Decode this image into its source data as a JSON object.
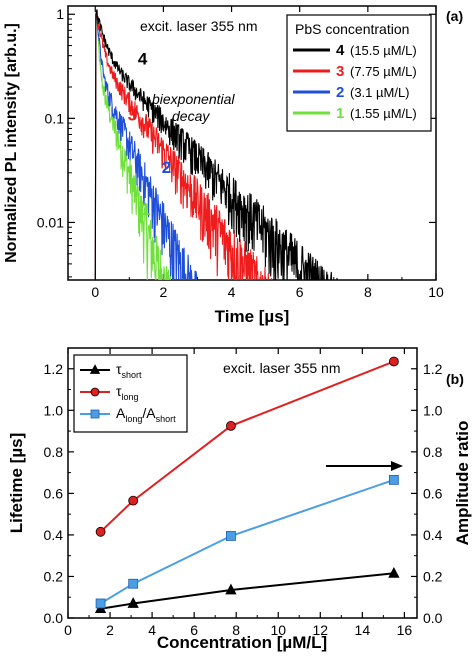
{
  "chart_data": [
    {
      "type": "line",
      "panel_label": "(a)",
      "xlabel": "Time [µs]",
      "ylabel": "Normalized PL intensity [arb.u.]",
      "xlim": [
        -0.8,
        10
      ],
      "ylim": [
        0.0028,
        1.2
      ],
      "y_scale": "log",
      "x_ticks": [
        "0",
        "2",
        "4",
        "6",
        "8",
        "10"
      ],
      "y_ticks": [
        {
          "v": 1,
          "label": "1"
        },
        {
          "v": 0.1,
          "label": "0.1"
        },
        {
          "v": 0.01,
          "label": "0.01"
        }
      ],
      "annotation_laser": "excit. laser 355 nm",
      "annotation_decay_1": "biexponential",
      "annotation_decay_2": "decay",
      "legend_title": "PbS concentration",
      "legend_position": "top-right",
      "series": [
        {
          "name": "4",
          "label": "(15.5 µM/L)",
          "color": "#000000",
          "a1": 0.55,
          "t1": 0.21,
          "a2": 0.45,
          "t2": 1.24,
          "curve_label_at": [
            1.25,
            0.33
          ]
        },
        {
          "name": "3",
          "label": "(7.75 µM/L)",
          "color": "#ee1c1c",
          "a1": 0.6,
          "t1": 0.14,
          "a2": 0.4,
          "t2": 0.93,
          "curve_label_at": [
            0.95,
            0.095
          ]
        },
        {
          "name": "2",
          "label": "(3.1 µM/L)",
          "color": "#1f4fd8",
          "a1": 0.7,
          "t1": 0.075,
          "a2": 0.3,
          "t2": 0.57,
          "curve_label_at": [
            1.95,
            0.03
          ]
        },
        {
          "name": "1",
          "label": "(1.55 µM/L)",
          "color": "#6fe03a",
          "a1": 0.72,
          "t1": 0.045,
          "a2": 0.28,
          "t2": 0.42,
          "curve_label_at": [
            1.35,
            0.0118
          ]
        }
      ]
    },
    {
      "type": "line",
      "panel_label": "(b)",
      "xlabel": "Concentration [µM/L]",
      "ylabel": "Lifetime [µs]",
      "ylabel_right": "Amplitude ratio",
      "xlim": [
        0,
        16.6
      ],
      "ylim": [
        0,
        1.3
      ],
      "ylim_right": [
        0,
        1.3
      ],
      "x_ticks": [
        "0",
        "2",
        "4",
        "6",
        "8",
        "10",
        "12",
        "14",
        "16"
      ],
      "y_ticks": [
        "0.0",
        "0.2",
        "0.4",
        "0.6",
        "0.8",
        "1.0",
        "1.2"
      ],
      "y_ticks_right": [
        "0.0",
        "0.2",
        "0.4",
        "0.6",
        "0.8",
        "1.0",
        "1.2"
      ],
      "annotation_laser": "excit. laser 355 nm",
      "arrow_direction": "right-axis",
      "legend_position": "top-left",
      "x": [
        1.55,
        3.1,
        7.75,
        15.5
      ],
      "series": [
        {
          "name": "τ",
          "sub": "short",
          "marker": "triangle",
          "color": "#000000",
          "values": [
            0.045,
            0.07,
            0.135,
            0.215
          ]
        },
        {
          "name": "τ",
          "sub": "long",
          "marker": "circle",
          "color": "#e02020",
          "values": [
            0.415,
            0.565,
            0.925,
            1.235
          ]
        },
        {
          "name": "A",
          "sub": "long",
          "name_tail": "/A",
          "sub_tail": "short",
          "marker": "square",
          "color": "#4a9ee6",
          "values": [
            0.07,
            0.165,
            0.395,
            0.665
          ]
        }
      ]
    }
  ]
}
